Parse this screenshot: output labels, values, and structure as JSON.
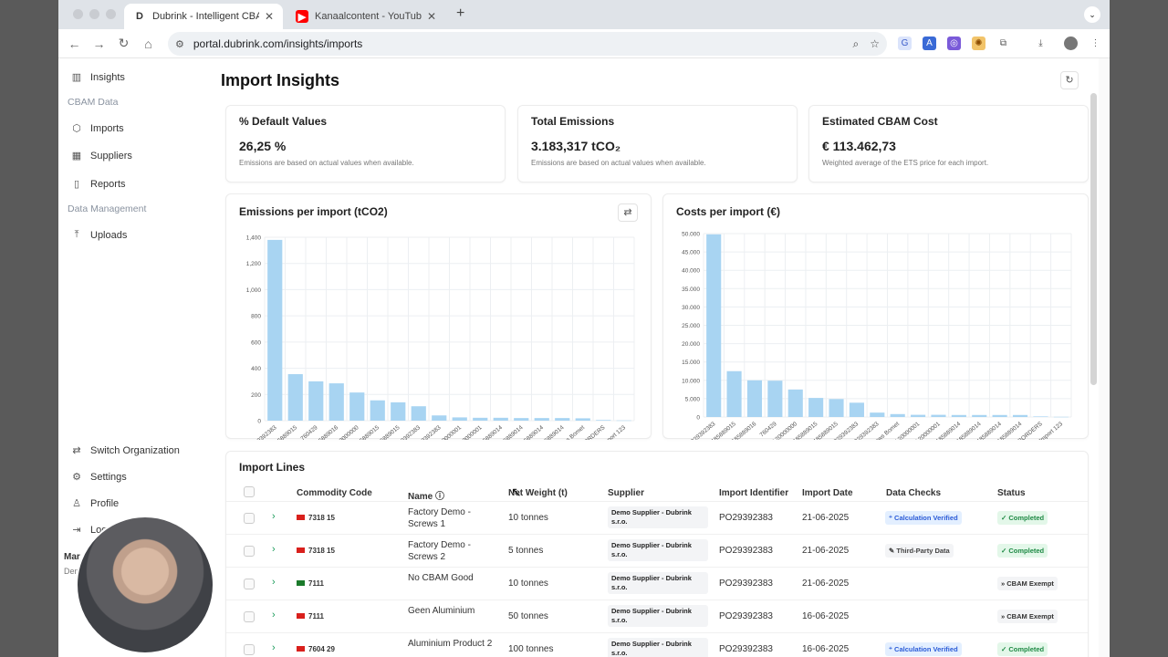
{
  "browser": {
    "tabs": [
      {
        "title": "Dubrink - Intelligent CBAM Pl",
        "fav": "D"
      },
      {
        "title": "Kanaalcontent - YouTube Stud",
        "fav": "▶"
      }
    ],
    "url": "portal.dubrink.com/insights/imports"
  },
  "sidebar": {
    "top_item": "Insights",
    "section1": "CBAM Data",
    "items1": [
      "Imports",
      "Suppliers",
      "Reports"
    ],
    "section2": "Data Management",
    "items2": [
      "Uploads"
    ],
    "bottom": [
      "Switch Organization",
      "Settings",
      "Profile",
      "Log"
    ],
    "user_initials": "Mar",
    "user_sub": "Dem"
  },
  "page": {
    "title": "Import Insights"
  },
  "kpis": [
    {
      "title": "% Default Values",
      "value": "26,25 %",
      "desc": "Emissions are based on actual values when available."
    },
    {
      "title": "Total Emissions",
      "value": "3.183,317 tCO₂",
      "desc": "Emissions are based on actual values when available."
    },
    {
      "title": "Estimated CBAM Cost",
      "value": "€ 113.462,73",
      "desc": "Weighted average of the ETS price for each import."
    }
  ],
  "chart_data": [
    {
      "type": "bar",
      "title": "Emissions per import (tCO2)",
      "categories": [
        "PO29392383",
        "INV-185889015",
        "760429",
        "INV-185889016",
        "INV-20000000",
        "INV-185889015",
        "INV-185889015",
        "PO29392383",
        "PO29392383",
        "INV-20000001",
        "INV-20000001",
        "INV-185889014",
        "INV-185889014",
        "INV-185889014",
        "INV-185889014",
        "Screws Bomet",
        "ALS BEYOND BORDERS",
        "Import 123"
      ],
      "values": [
        1380,
        355,
        300,
        285,
        215,
        155,
        140,
        110,
        40,
        25,
        22,
        22,
        20,
        20,
        20,
        18,
        5,
        2
      ],
      "yticks": [
        "0",
        "200",
        "400",
        "600",
        "800",
        "1,000",
        "1,200",
        "1,400"
      ],
      "ylim": [
        0,
        1400
      ],
      "color": "#a8d4f2",
      "grid": true
    },
    {
      "type": "bar",
      "title": "Costs per import (€)",
      "categories": [
        "PO29392383",
        "INV-185889015",
        "INV-185889016",
        "760429",
        "INV-20000000",
        "INV-185889015",
        "INV-185889015",
        "PO29392383",
        "PO29392383",
        "Screws Bomet",
        "INV-20000001",
        "INV-20000001",
        "INV-185889014",
        "INV-185889014",
        "INV-185889014",
        "INV-185889014",
        "ALS BEYOND BORDERS",
        "Import 123"
      ],
      "values": [
        49800,
        12500,
        10000,
        9900,
        7500,
        5200,
        4900,
        3900,
        1200,
        800,
        600,
        600,
        550,
        550,
        550,
        550,
        150,
        50
      ],
      "yticks": [
        "0",
        "5.000",
        "10.000",
        "15.000",
        "20.000",
        "25.000",
        "30.000",
        "35.000",
        "40.000",
        "45.000",
        "50.000"
      ],
      "ylim": [
        0,
        50000
      ],
      "color": "#a8d4f2",
      "grid": true
    }
  ],
  "table": {
    "title": "Import Lines",
    "headers": [
      "Commodity Code",
      "Name ⓘ",
      "Net Weight (t)",
      "Supplier",
      "Import Identifier",
      "Import Date",
      "Data Checks",
      "Status"
    ],
    "rows": [
      {
        "code": "7318 15",
        "name": "Factory Demo - Screws 1",
        "weight": "10 tonnes",
        "supplier": "Demo Supplier - Dubrink s.r.o.",
        "identifier": "PO29392383",
        "date": "21-06-2025",
        "check": "⁺ Calculation Verified",
        "check_style": "blue",
        "status": "✓ Completed",
        "status_style": "green",
        "flag": "#d9201c"
      },
      {
        "code": "7318 15",
        "name": "Factory Demo - Screws 2",
        "weight": "5 tonnes",
        "supplier": "Demo Supplier - Dubrink s.r.o.",
        "identifier": "PO29392383",
        "date": "21-06-2025",
        "check": "✎ Third-Party Data",
        "check_style": "plain",
        "status": "✓ Completed",
        "status_style": "green",
        "flag": "#d9201c"
      },
      {
        "code": "7111",
        "name": "No CBAM Good",
        "weight": "10 tonnes",
        "supplier": "Demo Supplier - Dubrink s.r.o.",
        "identifier": "PO29392383",
        "date": "21-06-2025",
        "check": "",
        "check_style": "",
        "status": "» CBAM Exempt",
        "status_style": "gray",
        "flag": "#1b7a2b"
      },
      {
        "code": "7111",
        "name": "Geen Aluminium",
        "weight": "50 tonnes",
        "supplier": "Demo Supplier - Dubrink s.r.o.",
        "identifier": "PO29392383",
        "date": "16-06-2025",
        "check": "",
        "check_style": "",
        "status": "» CBAM Exempt",
        "status_style": "gray",
        "flag": "#d9201c"
      },
      {
        "code": "7604 29",
        "name": "Aluminium Product 2",
        "weight": "100 tonnes",
        "supplier": "Demo Supplier - Dubrink s.r.o.",
        "identifier": "PO29392383",
        "date": "16-06-2025",
        "check": "⁺ Calculation Verified",
        "check_style": "blue",
        "status": "✓ Completed",
        "status_style": "green",
        "flag": "#d9201c"
      }
    ]
  }
}
